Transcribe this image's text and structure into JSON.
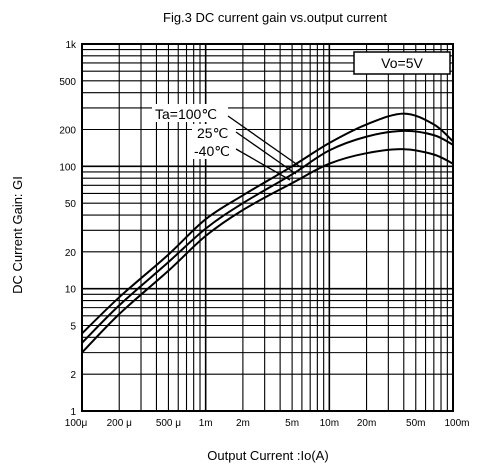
{
  "chart_data": {
    "type": "line",
    "title": "Fig.3 DC current gain vs.output current",
    "xlabel": "Output Current :Io(A)",
    "ylabel": "DC Current Gain: GI",
    "x_scale": "log",
    "y_scale": "log",
    "xlim": [
      0.0001,
      0.1
    ],
    "ylim": [
      1,
      1000
    ],
    "grid": true,
    "x_tick_labels": [
      {
        "value": 0.0001,
        "label": "100μ"
      },
      {
        "value": 0.0002,
        "label": "200 μ"
      },
      {
        "value": 0.0005,
        "label": "500 μ"
      },
      {
        "value": 0.001,
        "label": "1m"
      },
      {
        "value": 0.002,
        "label": "2m"
      },
      {
        "value": 0.005,
        "label": "5m"
      },
      {
        "value": 0.01,
        "label": "10m"
      },
      {
        "value": 0.02,
        "label": "20m"
      },
      {
        "value": 0.05,
        "label": "50m"
      },
      {
        "value": 0.1,
        "label": "100m"
      }
    ],
    "y_tick_labels": [
      {
        "value": 1000,
        "label": "1k"
      },
      {
        "value": 500,
        "label": "500"
      },
      {
        "value": 200,
        "label": "200"
      },
      {
        "value": 100,
        "label": "100"
      },
      {
        "value": 50,
        "label": "50"
      },
      {
        "value": 20,
        "label": "20"
      },
      {
        "value": 10,
        "label": "10"
      },
      {
        "value": 5,
        "label": "5"
      },
      {
        "value": 2,
        "label": "2"
      },
      {
        "value": 1,
        "label": "1"
      }
    ],
    "condition_label": "Vo=5V",
    "series_labels": [
      "Ta=100℃",
      "25℃",
      "-40℃"
    ],
    "series": [
      {
        "name": "Ta=100℃",
        "x": [
          0.0001,
          0.0002,
          0.0005,
          0.001,
          0.002,
          0.005,
          0.01,
          0.02,
          0.04,
          0.07,
          0.1
        ],
        "y": [
          4.3,
          8.5,
          19,
          37,
          58,
          100,
          155,
          220,
          270,
          220,
          160
        ]
      },
      {
        "name": "25℃",
        "x": [
          0.0001,
          0.0002,
          0.0005,
          0.001,
          0.002,
          0.005,
          0.01,
          0.02,
          0.04,
          0.07,
          0.1
        ],
        "y": [
          3.6,
          7.3,
          16.5,
          31,
          50,
          86,
          135,
          175,
          195,
          180,
          150
        ]
      },
      {
        "name": "-40℃",
        "x": [
          0.0001,
          0.0002,
          0.0005,
          0.001,
          0.002,
          0.005,
          0.01,
          0.02,
          0.04,
          0.07,
          0.1
        ],
        "y": [
          3.0,
          6.2,
          14,
          27,
          44,
          73,
          105,
          128,
          138,
          125,
          105
        ]
      }
    ]
  }
}
